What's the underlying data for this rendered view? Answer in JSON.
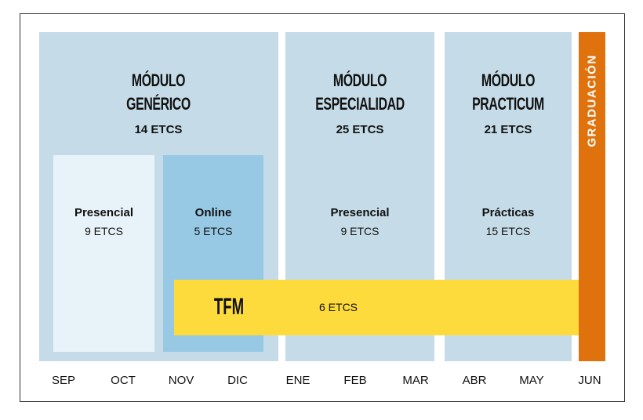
{
  "modules": [
    {
      "title_line1": "MÓDULO",
      "title_line2": "GENÉRICO",
      "etcs": "14 ETCS"
    },
    {
      "title_line1": "MÓDULO",
      "title_line2": "ESPECIALIDAD",
      "etcs": "25 ETCS"
    },
    {
      "title_line1": "MÓDULO",
      "title_line2": "PRACTICUM",
      "etcs": "21 ETCS"
    }
  ],
  "blocks": [
    {
      "title": "Presencial",
      "etcs": "9 ETCS"
    },
    {
      "title": "Online",
      "etcs": "5 ETCS"
    },
    {
      "title": "Presencial",
      "etcs": "9 ETCS"
    },
    {
      "title": "Prácticas",
      "etcs": "15 ETCS"
    }
  ],
  "tfm": {
    "label": "TFM",
    "etcs": "6 ETCS"
  },
  "graduation": {
    "label": "GRADUACIÓN"
  },
  "months": [
    "SEP",
    "OCT",
    "NOV",
    "DIC",
    "ENE",
    "FEB",
    "MAR",
    "ABR",
    "MAY",
    "JUN"
  ],
  "colors": {
    "module_bg": "#c5dce8",
    "presencial_light": "#e8f3f9",
    "online": "#98c9e4",
    "tfm": "#fddb3c",
    "graduation": "#e0720e"
  }
}
